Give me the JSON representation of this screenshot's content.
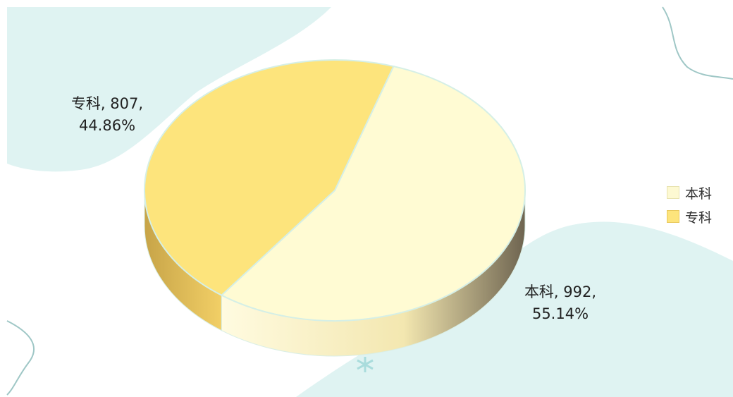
{
  "chart_data": {
    "type": "pie",
    "style": "3d",
    "categories": [
      "本科",
      "专科"
    ],
    "values": [
      992,
      807
    ],
    "percent_labels": [
      "55.14%",
      "44.86%"
    ],
    "data_labels": [
      {
        "line1": "本科, 992,",
        "line2": "55.14%"
      },
      {
        "line1": "专科, 807,",
        "line2": "44.86%"
      }
    ],
    "colors": [
      "#fffbd3",
      "#fde47c"
    ],
    "side_colors": [
      "#f6edb4",
      "#eac65a"
    ],
    "legend": {
      "position": "right",
      "items": [
        "本科",
        "专科"
      ]
    }
  }
}
